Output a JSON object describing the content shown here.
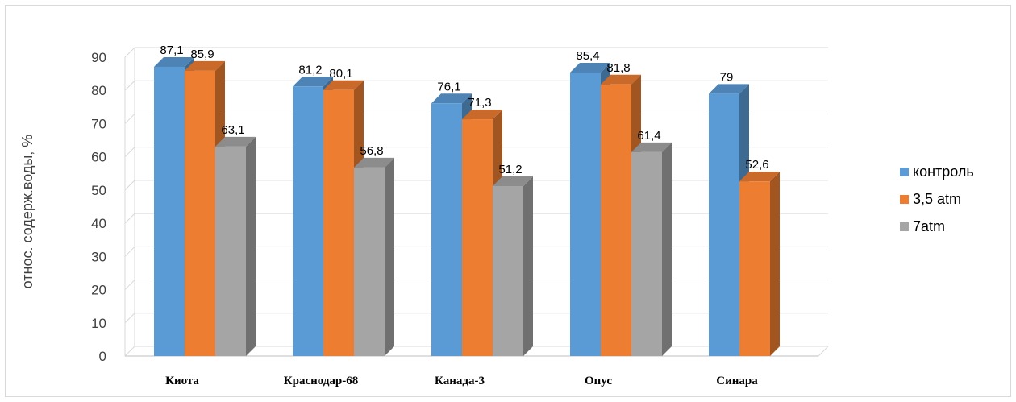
{
  "chart_data": {
    "type": "bar",
    "title": "",
    "xlabel": "",
    "ylabel": "относ. содерж.воды, %",
    "ylim": [
      0,
      90
    ],
    "yticks": [
      0,
      10,
      20,
      30,
      40,
      50,
      60,
      70,
      80,
      90
    ],
    "categories": [
      "Киота",
      "Краснодар-68",
      "Канада-3",
      "Опус",
      "Синара"
    ],
    "series": [
      {
        "name": "контроль",
        "color": "#5b9bd5",
        "values": [
          87.1,
          81.2,
          76.1,
          85.4,
          79
        ],
        "labels": [
          "87,1",
          "81,2",
          "76,1",
          "85,4",
          "79"
        ]
      },
      {
        "name": "3,5 atm",
        "color": "#ed7d31",
        "values": [
          85.9,
          80.1,
          71.3,
          81.8,
          52.6
        ],
        "labels": [
          "85,9",
          "80,1",
          "71,3",
          "81,8",
          "52,6"
        ]
      },
      {
        "name": "7atm",
        "color": "#a5a5a5",
        "values": [
          63.1,
          56.8,
          51.2,
          61.4,
          null
        ],
        "labels": [
          "63,1",
          "56,8",
          "51,2",
          "61,4",
          null
        ]
      }
    ],
    "grid": true,
    "legend_position": "right"
  }
}
